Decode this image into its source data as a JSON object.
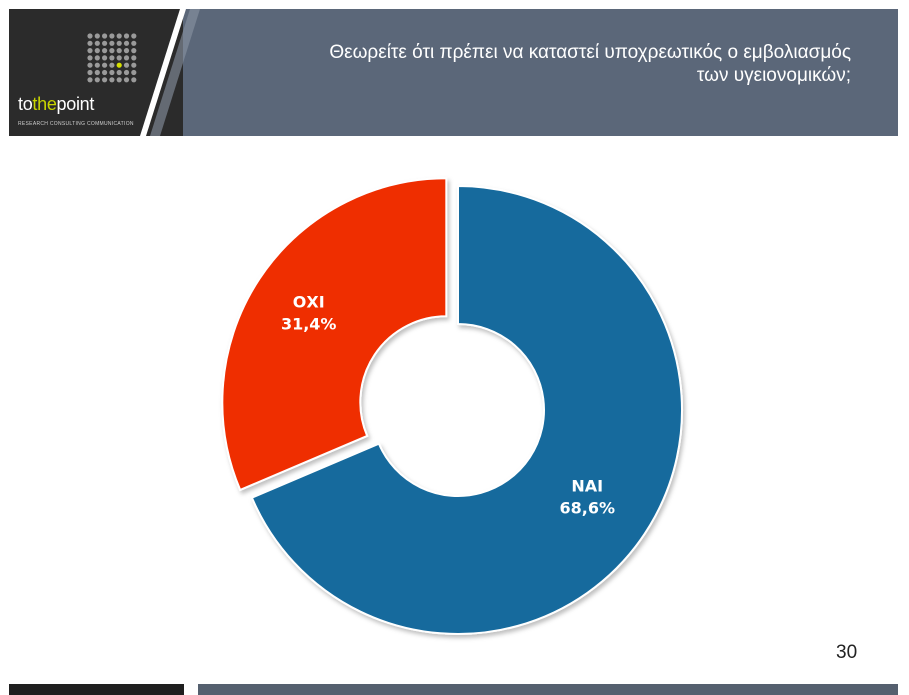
{
  "header": {
    "title_line1": "Θεωρείτε ότι πρέπει να καταστεί υποχρεωτικός ο εμβολιασμός",
    "title_line2": "των υγειονομικών;"
  },
  "logo": {
    "brand_part1": "to",
    "brand_part2": "the",
    "brand_part3": "point",
    "tagline": "RESEARCH  CONSULTING  COMMUNICATION"
  },
  "page_number": "30",
  "colors": {
    "header_bg": "#5b6779",
    "logo_bg": "#2b2b2b",
    "nai": "#136a9d",
    "oxi": "#ef2d06"
  },
  "chart_data": {
    "type": "pie",
    "style": "donut",
    "series": [
      {
        "label": "ΝΑΙ",
        "value_text": "68,6%",
        "value": 68.6,
        "color": "#136a9d"
      },
      {
        "label": "ΟΧΙ",
        "value_text": "31,4%",
        "value": 31.4,
        "color": "#ef2d06"
      }
    ],
    "exploded_slice": "ΟΧΙ",
    "legend": "none"
  }
}
